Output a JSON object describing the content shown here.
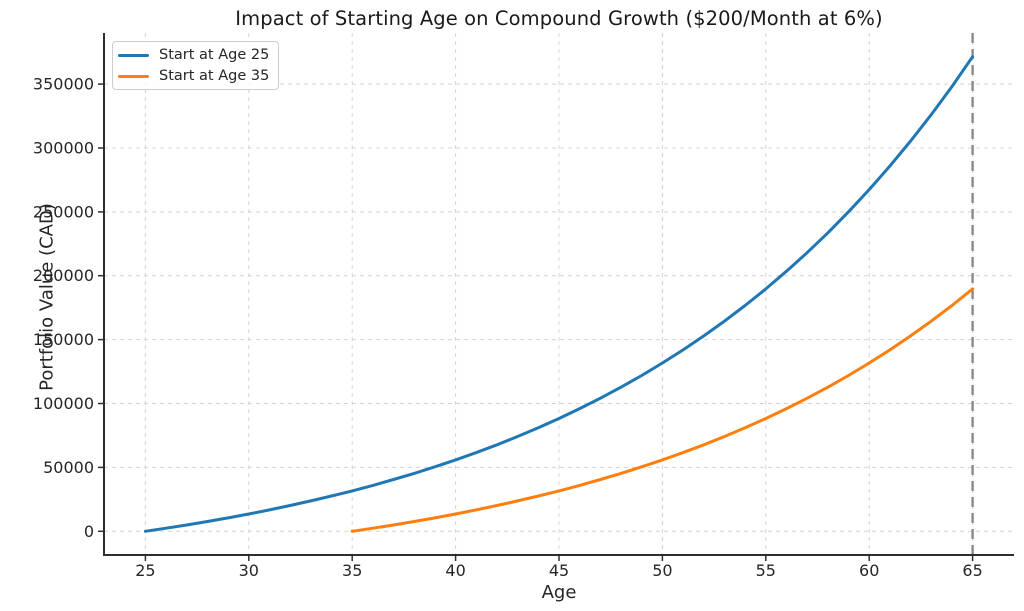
{
  "chart_data": {
    "type": "line",
    "title": "Impact of Starting Age on Compound Growth ($200/Month at 6%)",
    "xlabel": "Age",
    "ylabel": "Portfolio Value (CAD)",
    "xlim": [
      23,
      67
    ],
    "ylim": [
      -18571,
      390000
    ],
    "xticks": [
      25,
      30,
      35,
      40,
      45,
      50,
      55,
      60,
      65
    ],
    "yticks": [
      0,
      50000,
      100000,
      150000,
      200000,
      250000,
      300000,
      350000
    ],
    "grid": true,
    "grid_style": "dashed",
    "grid_color": "#d4d4d4",
    "spine_color": "#2e2e2e",
    "text_color": "#262626",
    "legend_position": "upper left",
    "series": [
      {
        "name": "Start at Age 25",
        "color": "#1f77b4",
        "x": [
          25,
          26,
          27,
          28,
          29,
          30,
          31,
          32,
          33,
          34,
          35,
          36,
          37,
          38,
          39,
          40,
          41,
          42,
          43,
          44,
          45,
          46,
          47,
          48,
          49,
          50,
          51,
          52,
          53,
          54,
          55,
          56,
          57,
          58,
          59,
          60,
          61,
          62,
          63,
          64,
          65
        ],
        "values": [
          0,
          2400,
          4944,
          7641,
          10499,
          13529,
          16741,
          20145,
          23754,
          27579,
          31634,
          35932,
          40488,
          45317,
          50436,
          55862,
          61614,
          67711,
          74174,
          81024,
          88285,
          95983,
          104141,
          112790,
          121957,
          131675,
          141975,
          152894,
          164467,
          176736,
          189740,
          203524,
          218135,
          233624,
          250041,
          267443,
          285890,
          305443,
          326170,
          348140,
          371429
        ]
      },
      {
        "name": "Start at Age 35",
        "color": "#ff7f0e",
        "x": [
          35,
          36,
          37,
          38,
          39,
          40,
          41,
          42,
          43,
          44,
          45,
          46,
          47,
          48,
          49,
          50,
          51,
          52,
          53,
          54,
          55,
          56,
          57,
          58,
          59,
          60,
          61,
          62,
          63,
          64,
          65
        ],
        "values": [
          0,
          2400,
          4944,
          7641,
          10499,
          13529,
          16741,
          20145,
          23754,
          27579,
          31634,
          35932,
          40488,
          45317,
          50436,
          55862,
          61614,
          67711,
          74174,
          81024,
          88285,
          95983,
          104141,
          112790,
          121957,
          131675,
          141975,
          152894,
          164467,
          176736,
          189740
        ]
      }
    ],
    "annotations": [
      {
        "type": "vline",
        "x": 65,
        "color": "#868686",
        "style": "dashed"
      }
    ]
  }
}
